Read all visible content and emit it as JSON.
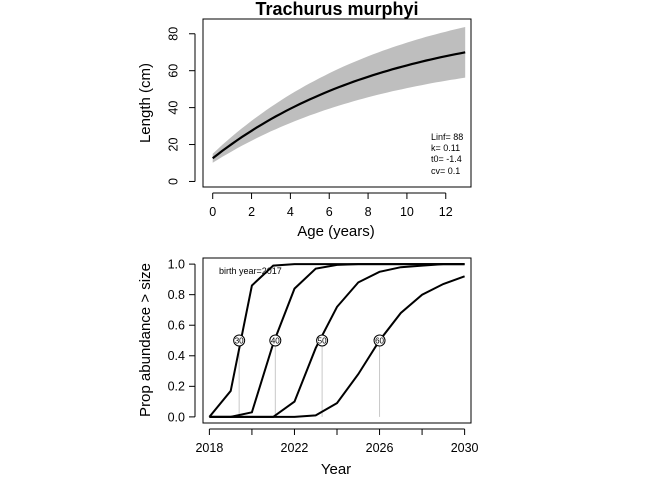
{
  "chart_data": [
    {
      "type": "line",
      "title": "Trachurus murphyi",
      "xlabel": "Age (years)",
      "ylabel": "Length (cm)",
      "xlim": [
        -0.5,
        13.3
      ],
      "ylim": [
        -3,
        88
      ],
      "xticks": [
        0,
        2,
        4,
        6,
        8,
        10,
        12
      ],
      "yticks": [
        0,
        20,
        40,
        60,
        80
      ],
      "params": {
        "Linf": 88,
        "k": 0.11,
        "t0": -1.4,
        "cv": 0.1
      },
      "annotations": [
        "Linf= 88",
        "k= 0.11",
        "t0= -1.4",
        "cv= 0.1"
      ],
      "band": "shaded range around mean growth curve",
      "grid": false
    },
    {
      "type": "line",
      "title": "",
      "xlabel": "Year",
      "ylabel": "Prop abundance > size",
      "xlim": [
        2017.7,
        2030.3
      ],
      "ylim": [
        -0.04,
        1.04
      ],
      "xticks": [
        2018,
        2022,
        2026,
        2030
      ],
      "minor_xticks": [
        2020,
        2024,
        2028
      ],
      "yticks": [
        0.0,
        0.2,
        0.4,
        0.6,
        0.8,
        1.0
      ],
      "ytick_labels": [
        "0.0",
        "0.2",
        "0.4",
        "0.6",
        "0.8",
        "1.0"
      ],
      "annotation": "birth year=2017",
      "x": [
        2018,
        2019,
        2020,
        2021,
        2022,
        2023,
        2024,
        2025,
        2026,
        2027,
        2028,
        2029,
        2030
      ],
      "series": [
        {
          "marker": "30",
          "crossing_year": 2019.4,
          "values": [
            0.0,
            0.17,
            0.86,
            0.99,
            1.0,
            1.0,
            1.0,
            1.0,
            1.0,
            1.0,
            1.0,
            1.0,
            1.0
          ]
        },
        {
          "marker": "40",
          "crossing_year": 2021.1,
          "values": [
            0.0,
            0.0,
            0.03,
            0.48,
            0.84,
            0.97,
            0.995,
            1.0,
            1.0,
            1.0,
            1.0,
            1.0,
            1.0
          ]
        },
        {
          "marker": "50",
          "crossing_year": 2023.3,
          "values": [
            0.0,
            0.0,
            0.0,
            0.0,
            0.1,
            0.45,
            0.72,
            0.88,
            0.95,
            0.98,
            0.99,
            1.0,
            1.0
          ]
        },
        {
          "marker": "60",
          "crossing_year": 2026.0,
          "values": [
            0.0,
            0.0,
            0.0,
            0.0,
            0.0,
            0.01,
            0.09,
            0.28,
            0.5,
            0.68,
            0.8,
            0.87,
            0.92
          ]
        }
      ],
      "grid": false
    }
  ]
}
